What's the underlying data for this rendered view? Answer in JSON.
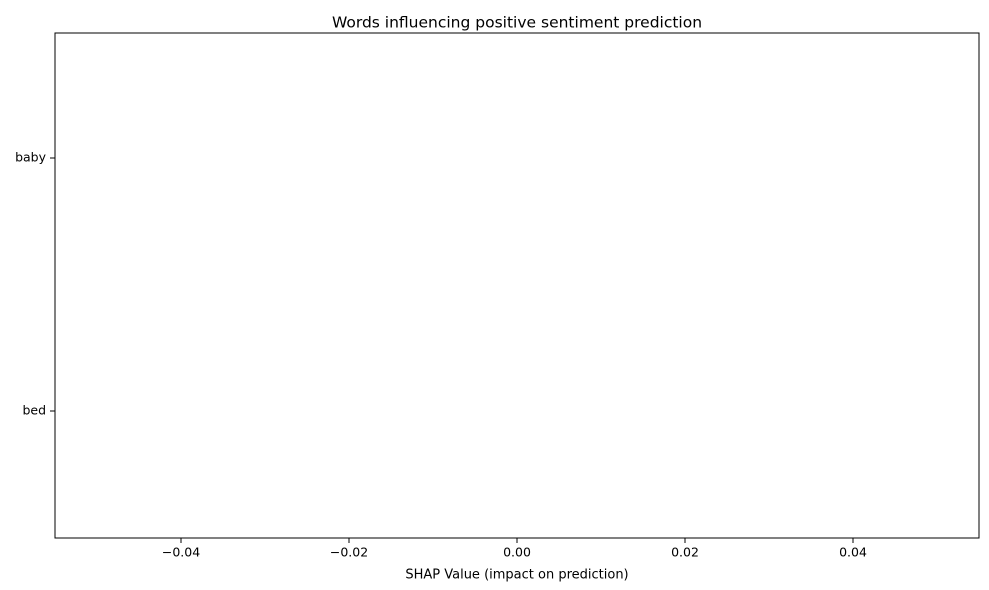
{
  "chart_data": {
    "type": "bar",
    "orientation": "horizontal",
    "title": "Words influencing positive sentiment prediction",
    "xlabel": "SHAP Value (impact on prediction)",
    "ylabel": "",
    "categories": [
      "baby",
      "bed"
    ],
    "values": [
      0,
      0
    ],
    "xlim": [
      -0.055,
      0.055
    ],
    "x_ticks": [
      -0.04,
      -0.02,
      0.0,
      0.02,
      0.04
    ],
    "x_tick_labels": [
      "−0.04",
      "−0.02",
      "0.00",
      "0.02",
      "0.04"
    ],
    "grid": false,
    "legend": "none",
    "colors": {
      "axis": "#000000",
      "background": "#ffffff",
      "bar": "#1f77b4"
    }
  }
}
